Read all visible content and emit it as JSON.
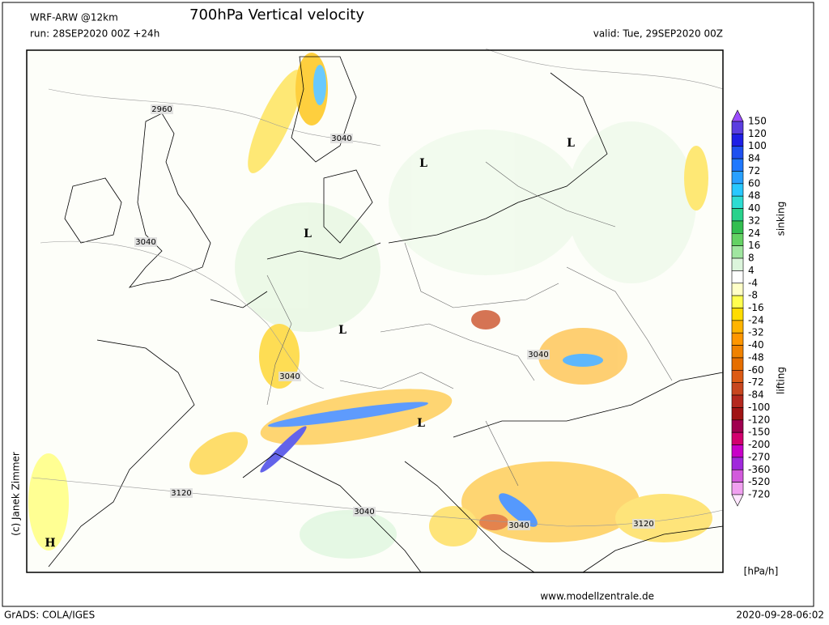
{
  "header": {
    "model": "WRF-ARW @12km",
    "title": "700hPa Vertical velocity",
    "run": "run: 28SEP2020 00Z +24h",
    "valid": "valid: Tue, 29SEP2020 00Z"
  },
  "map": {
    "contour_labels": [
      "2960",
      "3040",
      "3040",
      "3040",
      "3040",
      "3120",
      "3040",
      "3040",
      "3120"
    ],
    "lows": [
      "L",
      "L",
      "L",
      "L",
      "L"
    ],
    "high": "H"
  },
  "colorbar": {
    "levels": [
      150,
      120,
      100,
      84,
      72,
      60,
      48,
      40,
      32,
      24,
      16,
      8,
      4,
      -4,
      -8,
      -16,
      -24,
      -32,
      -40,
      -48,
      -60,
      -72,
      -84,
      -100,
      -120,
      -150,
      -200,
      -270,
      -360,
      -520,
      -720
    ],
    "colors": [
      "#9b4dff",
      "#5a3de0",
      "#1e1ee6",
      "#1e50f0",
      "#1e78ff",
      "#28a0ff",
      "#28c8ff",
      "#2ddcd2",
      "#28d28c",
      "#32be50",
      "#64d264",
      "#a0e6a0",
      "#dcf5dc",
      "#ffffff",
      "#ffffc8",
      "#ffff50",
      "#ffdc00",
      "#ffb400",
      "#ff9600",
      "#f08200",
      "#e66e00",
      "#dc5a14",
      "#c8461e",
      "#b4281e",
      "#a01414",
      "#a00050",
      "#d2006e",
      "#c800c8",
      "#a028dc",
      "#d25adc",
      "#f0a0f0",
      "#ffe6ff"
    ],
    "top_label": "sinking",
    "bottom_label": "lifting",
    "unit": "[hPa/h]"
  },
  "footer": {
    "credit": "(c) Janek Zimmer",
    "website": "www.modellzentrale.de",
    "software": "GrADS: COLA/IGES",
    "timestamp": "2020-09-28-06:02"
  }
}
